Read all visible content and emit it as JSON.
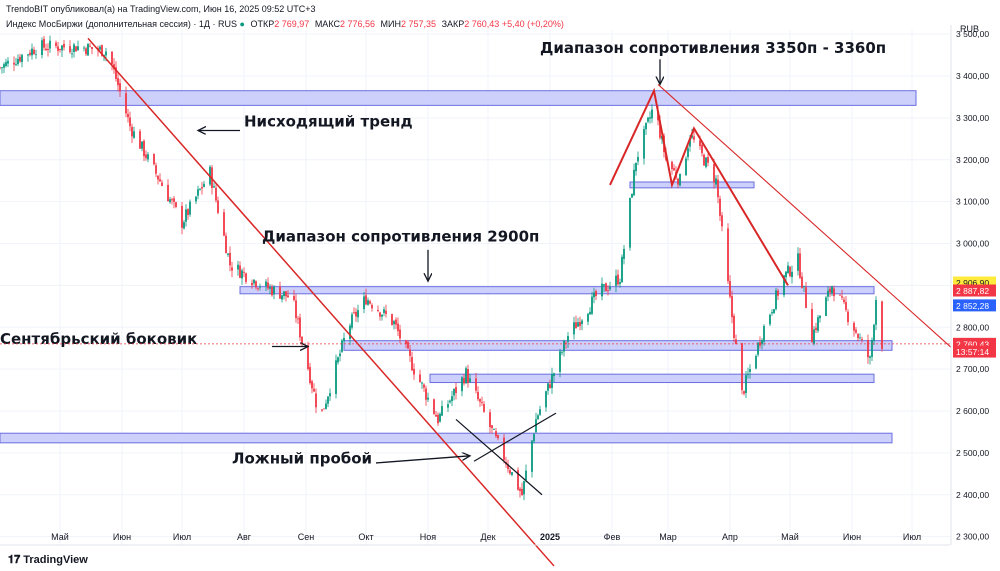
{
  "header": {
    "publisher": "TrendoBIT опубликовал(а) на TradingView.com, Июн 16, 2025 09:52 UTC+3",
    "symbol": "Индекс МосБиржи (дополнительная сессия) · 1Д · RUS",
    "open_label": "ОТКР",
    "open": "2 769,97",
    "high_label": "МАКС",
    "high": "2 776,56",
    "low_label": "МИН",
    "low": "2 757,35",
    "close_label": "ЗАКР",
    "close": "2 760,43",
    "change": "+5,40 (+0,20%)"
  },
  "footer": {
    "brand": "TradingView",
    "logo_icon": "tradingview-logo-icon"
  },
  "colors": {
    "up": "#089981",
    "down": "#f23645",
    "zone_fill": "#c5c8fb",
    "zone_stroke": "#6a6ee0",
    "trend": "#d92727",
    "grid": "#f0f3fa"
  },
  "chart_data": {
    "type": "candlestick",
    "currency": "RUB",
    "ylim": [
      2280,
      3510
    ],
    "y_ticks": [
      "3 500,00",
      "3 400,00",
      "3 300,00",
      "3 200,00",
      "3 100,00",
      "3 000,00",
      "2 900,00",
      "2 800,00",
      "2 700,00",
      "2 600,00",
      "2 500,00",
      "2 400,00",
      "2 300,00"
    ],
    "y_tick_values": [
      3500,
      3400,
      3300,
      3200,
      3100,
      3000,
      2900,
      2800,
      2700,
      2600,
      2500,
      2400,
      2300
    ],
    "x_ticks": [
      "Май",
      "Июн",
      "Июл",
      "Авг",
      "Сен",
      "Окт",
      "Ноя",
      "Дек",
      "2025",
      "Фев",
      "Мар",
      "Апр",
      "Май",
      "Июн",
      "Июл"
    ],
    "x_tick_dates": [
      "2024-05-01",
      "2024-06-01",
      "2024-07-01",
      "2024-08-01",
      "2024-09-01",
      "2024-10-01",
      "2024-11-01",
      "2024-12-01",
      "2025-01-01",
      "2025-02-01",
      "2025-03-01",
      "2025-04-01",
      "2025-05-01",
      "2025-06-01",
      "2025-07-01"
    ],
    "x_range": [
      "2024-04-01",
      "2025-07-20"
    ],
    "price_labels": [
      {
        "text": "2 906,90",
        "value": 2906.9,
        "bg": "#ffeb3b",
        "fg": "#131722"
      },
      {
        "text": "2 887,82",
        "value": 2887.82,
        "bg": "#f23645",
        "fg": "#ffffff"
      },
      {
        "text": "2 852,28",
        "value": 2852.28,
        "bg": "#2962ff",
        "fg": "#ffffff"
      },
      {
        "text": "2 760,43",
        "value": 2760.43,
        "bg": "#f23645",
        "fg": "#ffffff"
      },
      {
        "text": "13:57:14",
        "value": 2742,
        "bg": "#f23645",
        "fg": "#ffffff"
      }
    ],
    "anchors": [
      [
        "2024-04-01",
        3420
      ],
      [
        "2024-04-20",
        3470
      ],
      [
        "2024-05-10",
        3470
      ],
      [
        "2024-05-25",
        3460
      ],
      [
        "2024-06-05",
        3280
      ],
      [
        "2024-06-20",
        3150
      ],
      [
        "2024-07-01",
        3050
      ],
      [
        "2024-07-15",
        3170
      ],
      [
        "2024-07-25",
        2950
      ],
      [
        "2024-08-10",
        2900
      ],
      [
        "2024-08-25",
        2870
      ],
      [
        "2024-09-08",
        2580
      ],
      [
        "2024-09-22",
        2800
      ],
      [
        "2024-10-01",
        2870
      ],
      [
        "2024-10-15",
        2810
      ],
      [
        "2024-10-25",
        2700
      ],
      [
        "2024-11-06",
        2580
      ],
      [
        "2024-11-20",
        2690
      ],
      [
        "2024-12-05",
        2530
      ],
      [
        "2024-12-18",
        2400
      ],
      [
        "2024-12-25",
        2580
      ],
      [
        "2025-01-10",
        2780
      ],
      [
        "2025-01-25",
        2880
      ],
      [
        "2025-02-05",
        2920
      ],
      [
        "2025-02-13",
        3200
      ],
      [
        "2025-02-22",
        3330
      ],
      [
        "2025-02-28",
        3200
      ],
      [
        "2025-03-07",
        3150
      ],
      [
        "2025-03-12",
        3260
      ],
      [
        "2025-03-25",
        3150
      ],
      [
        "2025-03-31",
        2900
      ],
      [
        "2025-04-07",
        2640
      ],
      [
        "2025-04-18",
        2800
      ],
      [
        "2025-04-28",
        2920
      ],
      [
        "2025-05-05",
        2960
      ],
      [
        "2025-05-12",
        2780
      ],
      [
        "2025-05-22",
        2900
      ],
      [
        "2025-06-02",
        2800
      ],
      [
        "2025-06-10",
        2720
      ],
      [
        "2025-06-13",
        2870
      ],
      [
        "2025-06-16",
        2760.43
      ]
    ],
    "zones": [
      {
        "label": "resistance-zone-3350",
        "d1": "2024-04-01",
        "d2": "2025-07-03",
        "y1": 3330,
        "y2": 3365
      },
      {
        "label": "zone-3140",
        "d1": "2025-02-10",
        "d2": "2025-04-13",
        "y1": 3133,
        "y2": 3147
      },
      {
        "label": "resistance-zone-2900",
        "d1": "2024-07-30",
        "d2": "2025-06-12",
        "y1": 2880,
        "y2": 2897
      },
      {
        "label": "september-range-zone",
        "d1": "2024-09-20",
        "d2": "2025-06-21",
        "y1": 2745,
        "y2": 2768
      },
      {
        "label": "zone-2670",
        "d1": "2024-11-02",
        "d2": "2025-06-12",
        "y1": 2668,
        "y2": 2688
      },
      {
        "label": "support-zone-2500",
        "d1": "2024-04-01",
        "d2": "2025-06-21",
        "y1": 2524,
        "y2": 2547
      }
    ],
    "trendlines": [
      {
        "from": [
          "2024-05-15",
          3490
        ],
        "to": [
          "2025-01-03",
          2230
        ],
        "width": 1.5
      },
      {
        "from": [
          "2025-02-24",
          3380
        ],
        "to": [
          "2025-07-21",
          2750
        ],
        "width": 1.1
      }
    ],
    "pattern_lines": [
      [
        [
          "2025-01-31",
          3140
        ],
        [
          "2025-02-22",
          3365
        ],
        [
          "2025-03-03",
          3140
        ],
        [
          "2025-03-14",
          3275
        ],
        [
          "2025-04-30",
          2900
        ]
      ]
    ],
    "cross_lines": [
      {
        "from": [
          "2024-11-15",
          2580
        ],
        "to": [
          "2024-12-28",
          2400
        ]
      },
      {
        "from": [
          "2024-11-24",
          2480
        ],
        "to": [
          "2025-01-04",
          2595
        ]
      }
    ],
    "annotations": [
      {
        "text": "Диапазон сопротивления 3350п - 3360п",
        "anchor": [
          "2024-12-27",
          3455
        ],
        "size": 15
      },
      {
        "text": "Нисходящий тренд",
        "anchor": [
          "2024-08-01",
          3280
        ],
        "size": 15
      },
      {
        "text": "Диапазон сопротивления 2900п",
        "anchor": [
          "2024-08-10",
          3005
        ],
        "size": 15
      },
      {
        "text": "Сентябрьский боковик",
        "anchor": [
          "2024-04-01",
          2760
        ],
        "size": 15
      },
      {
        "text": "Ложный пробой",
        "anchor": [
          "2024-07-26",
          2475
        ],
        "size": 15
      }
    ],
    "arrows": [
      {
        "from": [
          "2025-02-25",
          3440
        ],
        "to": [
          "2025-02-25",
          3380
        ]
      },
      {
        "from": [
          "2024-07-30",
          3270
        ],
        "to": [
          "2024-07-09",
          3270
        ]
      },
      {
        "from": [
          "2024-11-01",
          2985
        ],
        "to": [
          "2024-11-01",
          2910
        ]
      },
      {
        "from": [
          "2024-08-15",
          2754
        ],
        "to": [
          "2024-09-02",
          2754
        ]
      },
      {
        "from": [
          "2024-10-06",
          2476
        ],
        "to": [
          "2024-11-22",
          2493
        ]
      }
    ]
  }
}
